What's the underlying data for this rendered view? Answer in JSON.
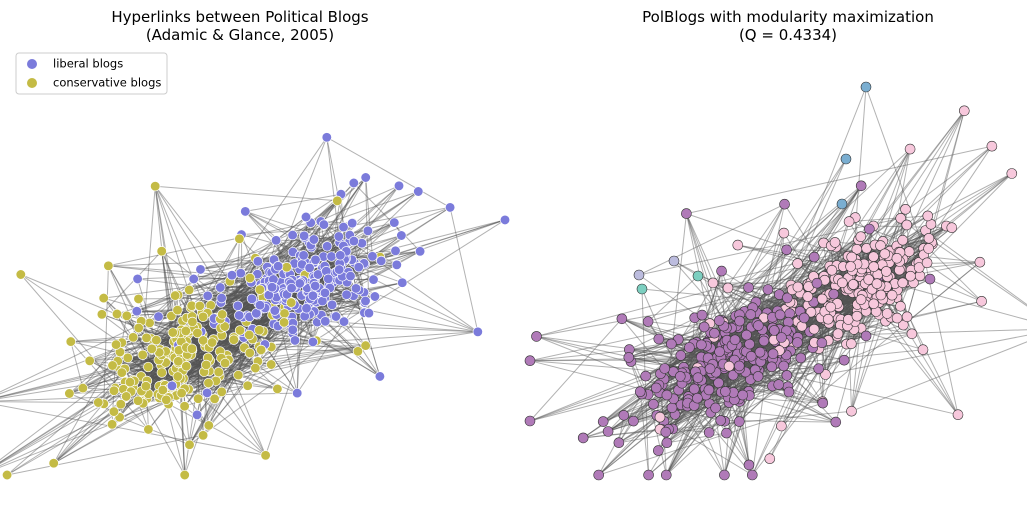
{
  "panels": [
    {
      "title": [
        "Hyperlinks between Political Blogs",
        "(Adamic & Glance, 2005)"
      ],
      "legend": [
        "liberal blogs",
        "conservative blogs"
      ]
    },
    {
      "title": [
        "PolBlogs with modularity maximization",
        "(Q = 0.4334)"
      ]
    }
  ]
}
